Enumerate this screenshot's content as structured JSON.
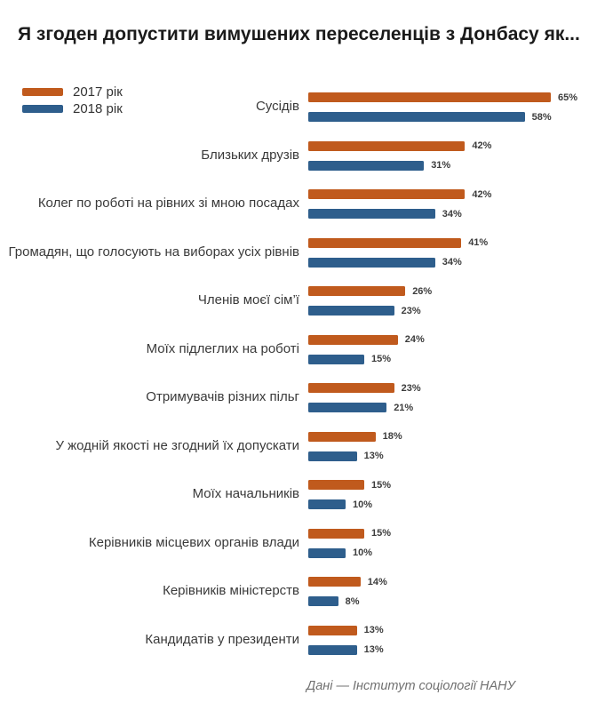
{
  "title": "Я згоден допустити вимушених переселенців з Донбасу як...",
  "legend": [
    {
      "label": "2017 рік",
      "color": "#c05a1d"
    },
    {
      "label": "2018 рік",
      "color": "#2e5e8c"
    }
  ],
  "footer": "Дані — Інститут соціології НАНУ",
  "chart_data": {
    "type": "bar",
    "orientation": "horizontal",
    "title": "Я згоден допустити вимушених переселенців з Донбасу як...",
    "categories": [
      "Сусідів",
      "Близьких друзів",
      "Колег по роботі на рівних зі мною посадах",
      "Громадян, що голосують на виборах усіх рівнів",
      "Членів моєї сім’ї",
      "Моїх підлеглих на роботі",
      "Отримувачів різних пільг",
      "У жодній якості не згодний їх допускати",
      "Моїх начальників",
      "Керівників місцевих органів влади",
      "Керівників міністерств",
      "Кандидатів у президенти"
    ],
    "series": [
      {
        "name": "2017 рік",
        "color": "#c05a1d",
        "values": [
          65,
          42,
          42,
          41,
          26,
          24,
          23,
          18,
          15,
          15,
          14,
          13
        ]
      },
      {
        "name": "2018 рік",
        "color": "#2e5e8c",
        "values": [
          58,
          31,
          34,
          34,
          23,
          15,
          21,
          13,
          10,
          10,
          8,
          13
        ]
      }
    ],
    "value_suffix": "%",
    "xlim": [
      0,
      100
    ],
    "grid": false,
    "legend_position": "top-left",
    "value_labels": "end-of-bar"
  }
}
